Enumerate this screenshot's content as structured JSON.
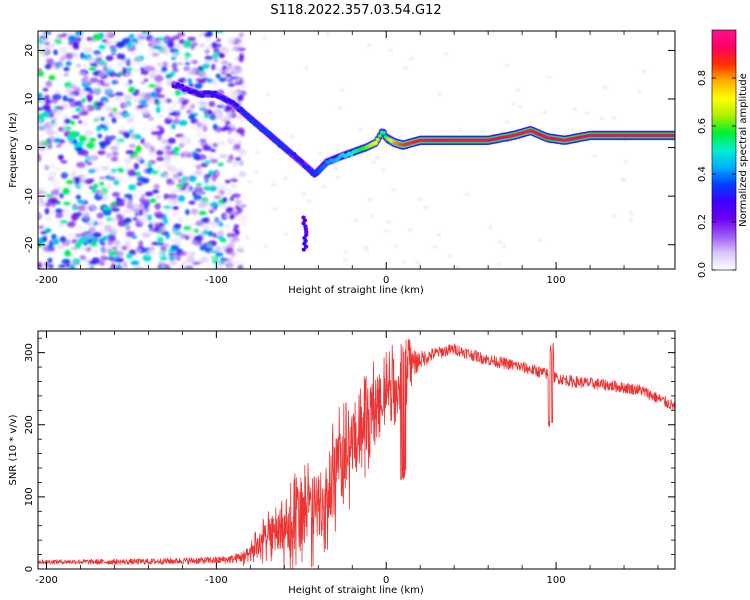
{
  "title": "S118.2022.357.03.54.G12",
  "chart_data": [
    {
      "type": "heatmap",
      "panel": "spectrogram",
      "xlabel": "Height of straight line (km)",
      "ylabel": "Frequency (Hz)",
      "xlim": [
        -205,
        170
      ],
      "ylim": [
        -25,
        24
      ],
      "xticks": [
        -200,
        -100,
        0,
        100
      ],
      "yticks": [
        -20,
        -10,
        0,
        10,
        20
      ],
      "colorbar": {
        "label": "Normalized spectral amplitude",
        "range": [
          0,
          1
        ],
        "ticks": [
          "0.0",
          "0.2",
          "0.4",
          "0.6",
          "0.8"
        ],
        "colors": [
          "#ffffff",
          "#d9c6f7",
          "#9b59f2",
          "#6a00f0",
          "#3d00ff",
          "#0040ff",
          "#00b0ff",
          "#00f0d0",
          "#00f030",
          "#b0f000",
          "#ffff00",
          "#ffb000",
          "#ff3000",
          "#ff0060",
          "#ff1090"
        ]
      },
      "ridge": {
        "description": "dominant spectral line vs height",
        "x": [
          -125,
          -110,
          -100,
          -90,
          -80,
          -70,
          -60,
          -50,
          -42,
          -35,
          -28,
          -20,
          -12,
          -6,
          -2,
          0,
          5,
          10,
          20,
          40,
          60,
          75,
          85,
          95,
          105,
          120,
          140,
          160,
          170
        ],
        "y": [
          13,
          11,
          11,
          9,
          6,
          3,
          0,
          -3,
          -5.5,
          -3,
          -2,
          -1,
          0,
          1,
          3.5,
          2,
          1,
          0.5,
          1.5,
          1.5,
          1.5,
          2.5,
          3.5,
          2,
          1.5,
          2.5,
          2.5,
          2.5,
          2.5
        ],
        "amplitude": [
          0.25,
          0.3,
          0.3,
          0.3,
          0.35,
          0.35,
          0.35,
          0.3,
          0.35,
          0.4,
          0.45,
          0.5,
          0.6,
          0.7,
          0.5,
          0.6,
          0.8,
          0.85,
          0.9,
          0.95,
          0.95,
          0.9,
          0.9,
          0.95,
          0.9,
          0.95,
          0.95,
          0.95,
          0.95
        ]
      },
      "noise_region": {
        "x_range": [
          -205,
          -90
        ],
        "y_range": [
          -25,
          24
        ]
      },
      "isolated_blob": {
        "x": -48,
        "y_range": [
          -21,
          -14
        ]
      }
    },
    {
      "type": "line",
      "panel": "snr",
      "xlabel": "Height of straight line (km)",
      "ylabel": "SNR (10 * v/v)",
      "xlim": [
        -205,
        170
      ],
      "ylim": [
        0,
        330
      ],
      "xticks": [
        -200,
        -100,
        0,
        100
      ],
      "yticks": [
        0,
        100,
        200,
        300
      ],
      "color": "#ee3333",
      "envelope": {
        "x": [
          -205,
          -150,
          -100,
          -90,
          -80,
          -75,
          -70,
          -60,
          -50,
          -40,
          -30,
          -20,
          -10,
          0,
          10,
          20,
          30,
          40,
          60,
          80,
          95,
          100,
          110,
          130,
          150,
          170
        ],
        "mean": [
          10,
          10,
          12,
          14,
          20,
          35,
          45,
          60,
          70,
          90,
          130,
          170,
          210,
          250,
          275,
          290,
          300,
          305,
          290,
          280,
          270,
          265,
          260,
          255,
          248,
          225
        ],
        "spread": [
          3,
          4,
          5,
          6,
          10,
          15,
          20,
          35,
          40,
          45,
          50,
          40,
          40,
          35,
          30,
          12,
          8,
          8,
          8,
          8,
          8,
          8,
          8,
          8,
          8,
          8
        ]
      },
      "spikes": [
        {
          "x": 10,
          "min": 120,
          "max": 320
        },
        {
          "x": 97,
          "min": 195,
          "max": 315
        }
      ]
    }
  ]
}
